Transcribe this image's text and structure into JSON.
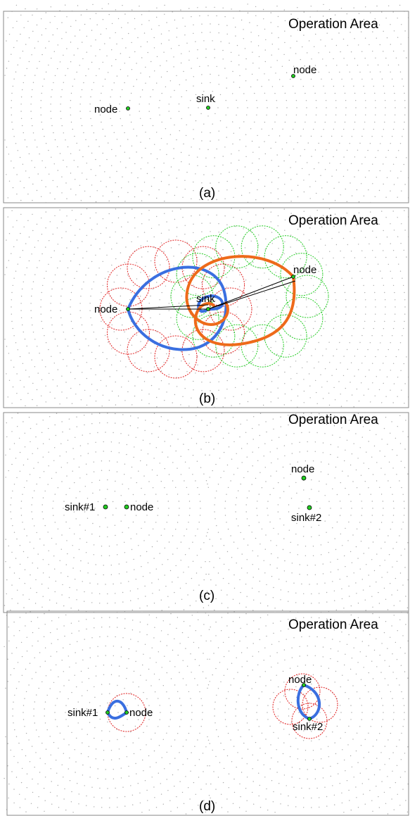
{
  "area_label": "Operation Area",
  "panels": [
    {
      "caption": "(a)",
      "labels": {
        "node1": "node",
        "sink": "sink",
        "node2": "node"
      }
    },
    {
      "caption": "(b)",
      "labels": {
        "node1": "node",
        "sink": "sink",
        "node2": "node"
      }
    },
    {
      "caption": "(c)",
      "labels": {
        "sink1": "sink#1",
        "node1": "node",
        "node2": "node",
        "sink2": "sink#2"
      }
    },
    {
      "caption": "(d)",
      "labels": {
        "sink1": "sink#1",
        "node1": "node",
        "node2": "node",
        "sink2": "sink#2"
      }
    }
  ],
  "colors": {
    "node_fill": "#22cc22",
    "grid_dot": "#aaaaaa",
    "circle_red": "#e02020",
    "circle_green": "#22cc22",
    "curve_blue": "#3a6fe0",
    "curve_orange": "#ee6a1a",
    "link_line": "#000000"
  }
}
